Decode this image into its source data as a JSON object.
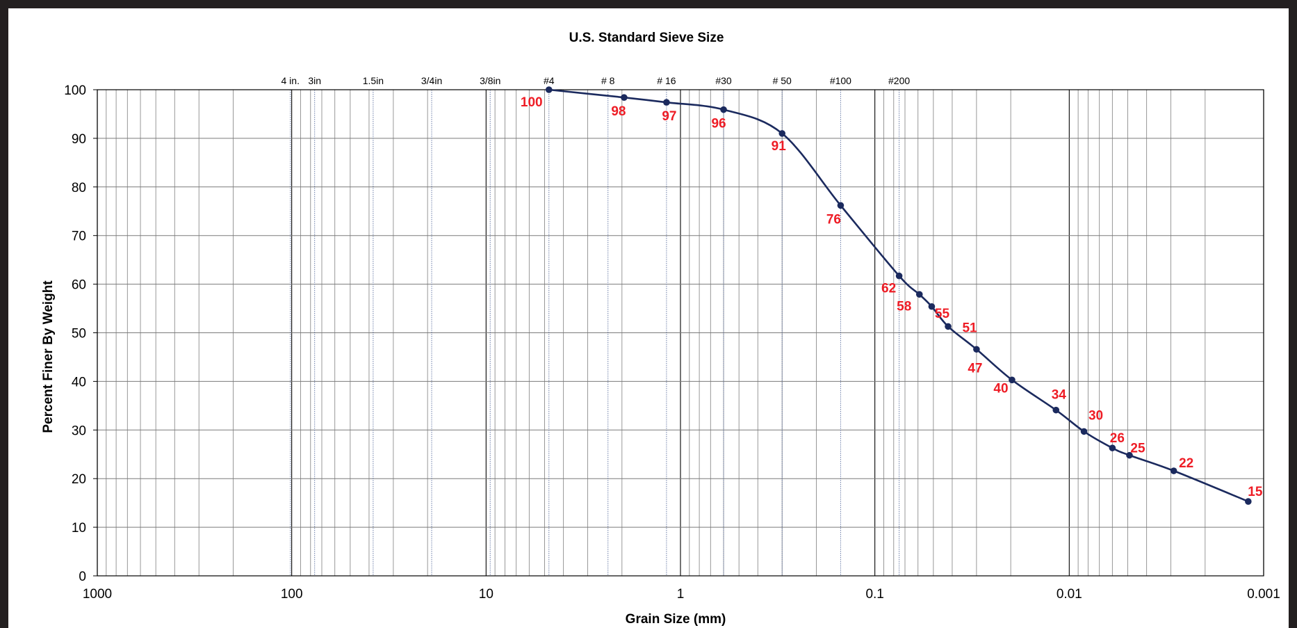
{
  "chart_data": {
    "type": "line",
    "title": "U.S. Standard Sieve Size",
    "xlabel": "Grain Size (mm)",
    "ylabel": "Percent Finer By Weight",
    "x_scale": "log",
    "x_reversed": true,
    "xlim": [
      1000,
      0.001
    ],
    "ylim": [
      0,
      100
    ],
    "grid": true,
    "x_ticks": [
      "1000",
      "100",
      "10",
      "1",
      "0.1",
      "0.01",
      "0.001"
    ],
    "y_ticks": [
      "0",
      "10",
      "20",
      "30",
      "40",
      "50",
      "60",
      "70",
      "80",
      "90",
      "100"
    ],
    "sieve_labels": [
      {
        "label": "4 in.",
        "x": 101.6
      },
      {
        "label": "3in",
        "x": 76.2
      },
      {
        "label": "1.5in",
        "x": 38.1
      },
      {
        "label": "3/4in",
        "x": 19.05
      },
      {
        "label": "3/8in",
        "x": 9.525
      },
      {
        "label": "#4",
        "x": 4.75
      },
      {
        "label": "# 8",
        "x": 2.36
      },
      {
        "label": "# 16",
        "x": 1.18
      },
      {
        "label": "#30",
        "x": 0.6
      },
      {
        "label": "# 50",
        "x": 0.3
      },
      {
        "label": "#100",
        "x": 0.15
      },
      {
        "label": "#200",
        "x": 0.075
      }
    ],
    "line_color": "#1b2a5e",
    "label_color": "#ee1c25",
    "series": [
      {
        "x": [
          4.75,
          1.95,
          1.18,
          0.6,
          0.3,
          0.15,
          0.075,
          0.059,
          0.051,
          0.042,
          0.03,
          0.0197,
          0.0117,
          0.0084,
          0.006,
          0.0049,
          0.0029,
          0.0012
        ],
        "y": [
          100,
          98.4,
          97.4,
          95.9,
          91,
          76.2,
          61.7,
          57.9,
          55.4,
          51.3,
          46.6,
          40.3,
          34.1,
          29.7,
          26.3,
          24.8,
          21.6,
          15.3
        ],
        "labels": [
          "100",
          "98",
          "97",
          "96",
          "91",
          "76",
          "62",
          "58",
          "55",
          "51",
          "47",
          "40",
          "34",
          "30",
          "26",
          "25",
          "22",
          "15"
        ]
      }
    ]
  }
}
